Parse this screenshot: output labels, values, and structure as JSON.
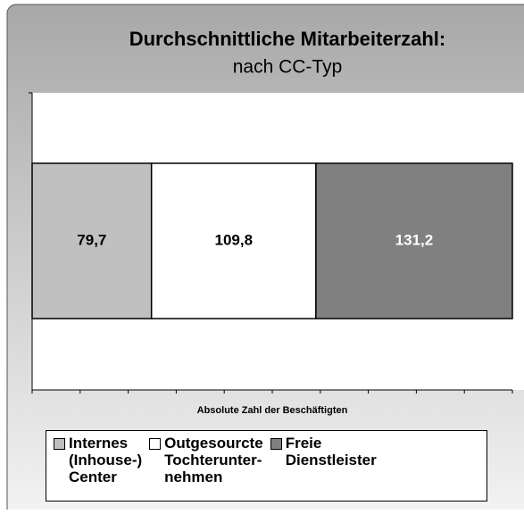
{
  "chart_data": {
    "type": "bar",
    "orientation": "horizontal",
    "stacked": true,
    "title": "Durchschnittliche Mitarbeiterzahl:",
    "subtitle": "nach CC-Typ",
    "x_label": "Absolute Zahl der Beschäftigten",
    "xlim": [
      0,
      320.7
    ],
    "series": [
      {
        "name": "Internes\n(Inhouse-)\nCenter",
        "color": "#c0c0c0",
        "values": [
          79.7
        ],
        "value_labels": [
          "79,7"
        ]
      },
      {
        "name": "Outgesourcte\nTochterunter-\nnehmen",
        "color": "#ffffff",
        "values": [
          109.8
        ],
        "value_labels": [
          "109,8"
        ]
      },
      {
        "name": "Freie\nDienstleister",
        "color": "#808080",
        "values": [
          131.2
        ],
        "value_labels": [
          "131,2"
        ]
      }
    ]
  }
}
